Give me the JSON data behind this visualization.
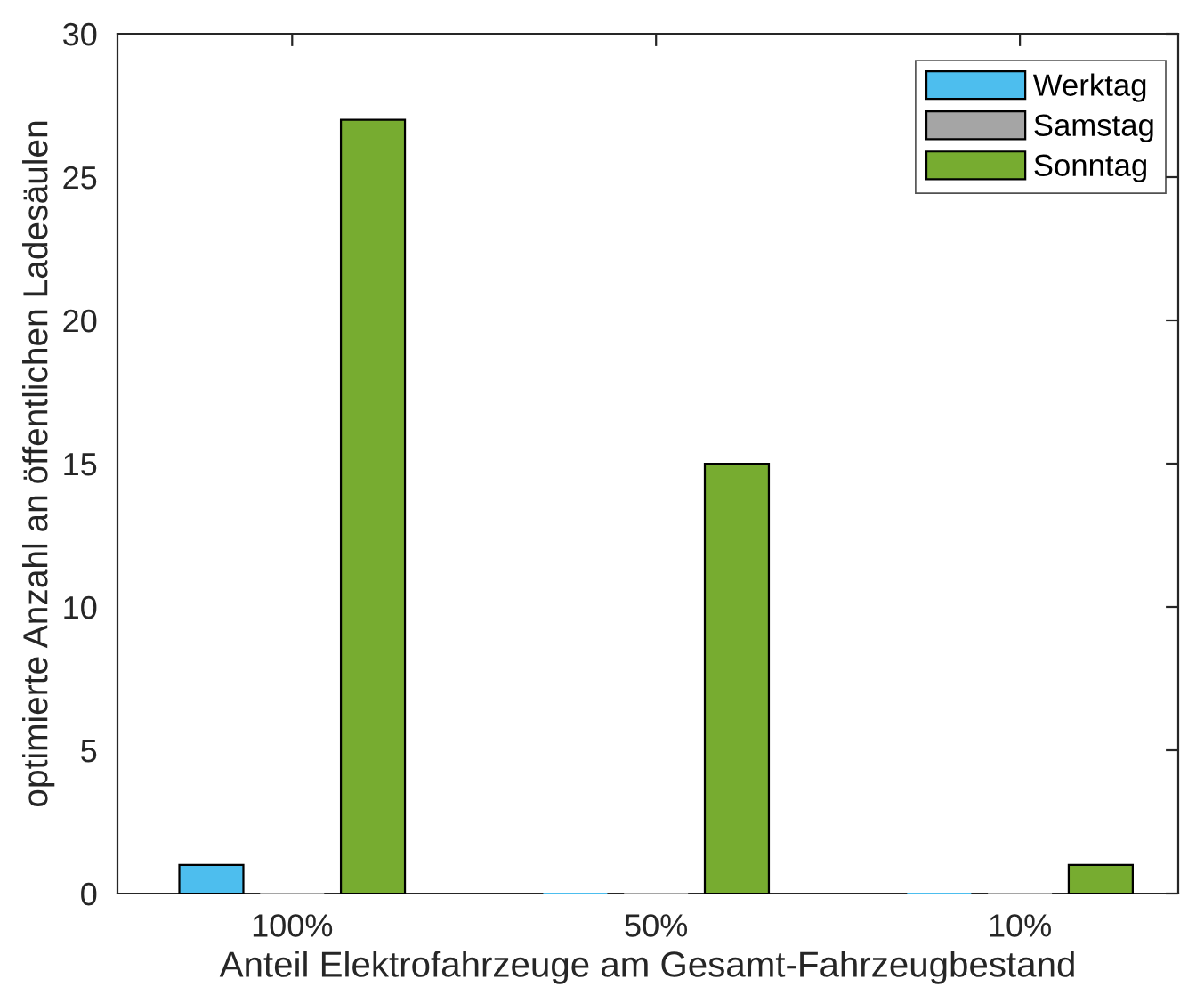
{
  "chart_data": {
    "type": "bar",
    "xlabel": "Anteil Elektrofahrzeuge am Gesamt-Fahrzeugbestand",
    "ylabel": "optimierte Anzahl an öffentlichen Ladesäulen",
    "categories": [
      "100%",
      "50%",
      "10%"
    ],
    "series": [
      {
        "name": "Werktag",
        "color": "#4dbeee",
        "values": [
          1,
          0,
          0
        ]
      },
      {
        "name": "Samstag",
        "color": "#a5a5a5",
        "values": [
          0,
          0,
          0
        ]
      },
      {
        "name": "Sonntag",
        "color": "#77ac30",
        "values": [
          27,
          15,
          1
        ]
      }
    ],
    "ylim": [
      0,
      30
    ],
    "yticks": [
      0,
      5,
      10,
      15,
      20,
      25,
      30
    ],
    "grid": false,
    "legend": "top right"
  }
}
